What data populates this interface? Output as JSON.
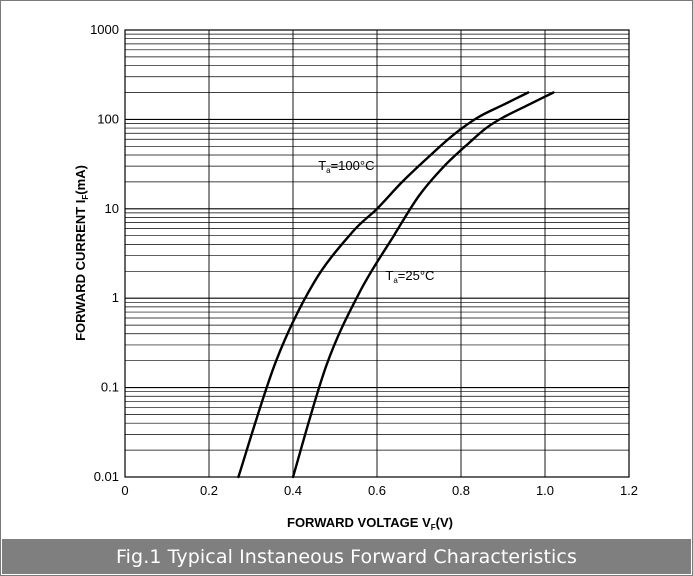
{
  "chart_data": {
    "type": "line",
    "caption": "Fig.1 Typical Instaneous Forward Characteristics",
    "xlabel": {
      "main": "FORWARD VOLTAGE",
      "symbol": "V",
      "sub": "F",
      "unit": "(V)"
    },
    "ylabel": {
      "main": "FORWARD CURRENT",
      "symbol": "I",
      "sub": "F",
      "unit": "(mA)"
    },
    "x_scale": "linear",
    "y_scale": "log",
    "xlim": [
      0,
      1.2
    ],
    "ylim": [
      0.01,
      1000
    ],
    "x_ticks": [
      0,
      0.2,
      0.4,
      0.6,
      0.8,
      1.0,
      1.2
    ],
    "x_tick_labels": [
      "0",
      "0.2",
      "0.4",
      "0.6",
      "0.8",
      "1.0",
      "1.2"
    ],
    "y_ticks": [
      0.01,
      0.1,
      1,
      10,
      100,
      1000
    ],
    "y_tick_labels": [
      "0.01",
      "0.1",
      "1",
      "10",
      "100",
      "1000"
    ],
    "grid": true,
    "legend": "none",
    "series": [
      {
        "label_main": "T",
        "label_sub": "a",
        "label_rest": "=100°C",
        "x": [
          0.27,
          0.36,
          0.45,
          0.54,
          0.6,
          0.66,
          0.72,
          0.78,
          0.84,
          0.9,
          0.96
        ],
        "y": [
          0.01,
          0.2,
          1.5,
          5.4,
          10,
          20,
          37,
          66,
          105,
          145,
          200
        ]
      },
      {
        "label_main": "T",
        "label_sub": "a",
        "label_rest": "=25°C",
        "x": [
          0.4,
          0.48,
          0.56,
          0.64,
          0.7,
          0.76,
          0.82,
          0.86,
          0.9,
          0.96,
          1.02
        ],
        "y": [
          0.01,
          0.18,
          1.2,
          5,
          14,
          30,
          55,
          80,
          105,
          145,
          200
        ]
      }
    ],
    "colors": {
      "curve": "#000000",
      "grid": "#000000",
      "caption_bg": "#7f7f7f",
      "caption_text": "#ffffff"
    }
  }
}
